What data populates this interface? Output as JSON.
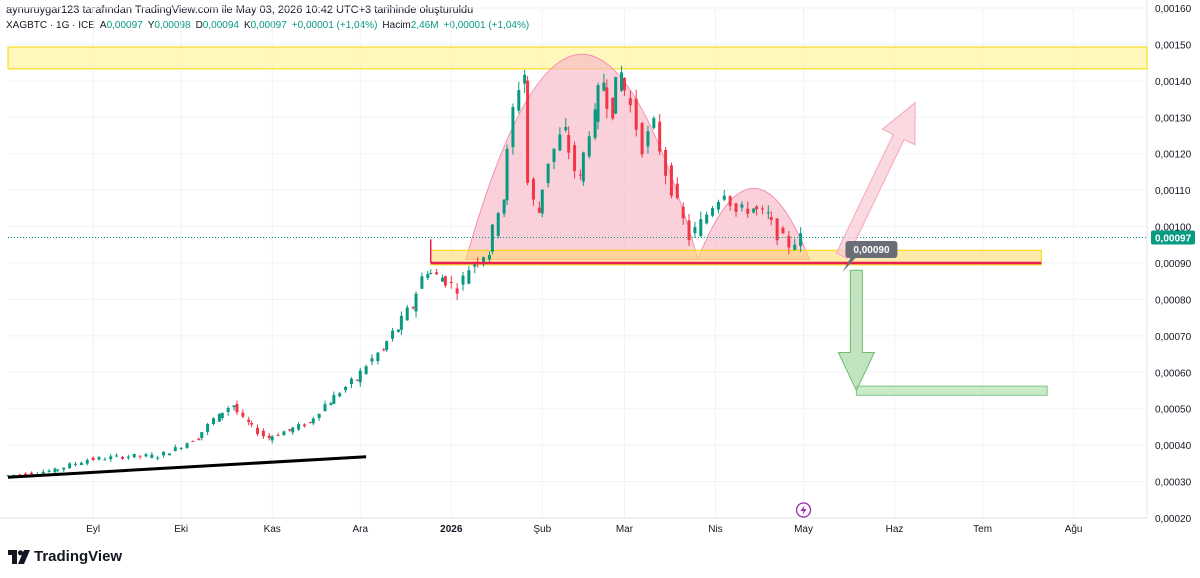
{
  "header": {
    "attribution": "aynuruygar123 tarafından TradingView.com ile May 03, 2026 10:42 UTC+3 tarihinde oluşturuldu"
  },
  "legend": {
    "symbol": "XAGBTC · 1G · ICE",
    "open_label": "A",
    "open": "0,00097",
    "high_label": "Y",
    "high": "0,00098",
    "low_label": "D",
    "low": "0,00094",
    "close_label": "K",
    "close": "0,00097",
    "change": "+0,00001 (+1,04%)",
    "volume_label": "Hacim",
    "volume": "2,46M",
    "volume_change": "+0,00001 (+1,04%)"
  },
  "branding": {
    "name": "TradingView"
  },
  "colors": {
    "up": "#089981",
    "down": "#f23645",
    "support_line": "#e91e4e",
    "zone_yellow": "#fff3a0",
    "dome_fill": "#f7b7c8",
    "target_green": "#b7e4b4",
    "trendline": "#000000",
    "current_price_badge": "#089981",
    "annotation_badge": "#6a6d78"
  },
  "chart_data": {
    "type": "candlestick",
    "symbol": "XAGBTC",
    "interval": "1G",
    "y_scale": "linear",
    "ylim": [
      0.0002,
      0.0016
    ],
    "y_ticks": [
      "0,00160",
      "0,00150",
      "0,00140",
      "0,00130",
      "0,00120",
      "0,00110",
      "0,00100",
      "0,00090",
      "0,00080",
      "0,00070",
      "0,00060",
      "0,00050",
      "0,00040",
      "0,00030",
      "0,00020"
    ],
    "y_tick_values": [
      0.0016,
      0.0015,
      0.0014,
      0.0013,
      0.0012,
      0.0011,
      0.001,
      0.0009,
      0.0008,
      0.0007,
      0.0006,
      0.0005,
      0.0004,
      0.0003,
      0.0002
    ],
    "x_ticks": [
      {
        "label": "Eyl",
        "date": "2025-09-01"
      },
      {
        "label": "Eki",
        "date": "2025-10-01"
      },
      {
        "label": "Kas",
        "date": "2025-11-01"
      },
      {
        "label": "Ara",
        "date": "2025-12-01"
      },
      {
        "label": "2026",
        "date": "2026-01-01",
        "bold": true
      },
      {
        "label": "Şub",
        "date": "2026-02-01"
      },
      {
        "label": "Mar",
        "date": "2026-03-01"
      },
      {
        "label": "Nis",
        "date": "2026-04-01"
      },
      {
        "label": "May",
        "date": "2026-05-01"
      },
      {
        "label": "Haz",
        "date": "2026-06-01"
      },
      {
        "label": "Tem",
        "date": "2026-07-01"
      },
      {
        "label": "Ağu",
        "date": "2026-08-01"
      }
    ],
    "x_range": [
      "2025-08-03",
      "2026-08-26"
    ],
    "price_path": [
      [
        "2025-08-03",
        0.000315
      ],
      [
        "2025-08-20",
        0.00033
      ],
      [
        "2025-09-01",
        0.00036
      ],
      [
        "2025-09-15",
        0.00037
      ],
      [
        "2025-09-25",
        0.00037
      ],
      [
        "2025-10-01",
        0.00039
      ],
      [
        "2025-10-08",
        0.00042
      ],
      [
        "2025-10-15",
        0.00048
      ],
      [
        "2025-10-20",
        0.00051
      ],
      [
        "2025-10-25",
        0.00046
      ],
      [
        "2025-11-01",
        0.00042
      ],
      [
        "2025-11-08",
        0.00044
      ],
      [
        "2025-11-15",
        0.00046
      ],
      [
        "2025-11-22",
        0.00052
      ],
      [
        "2025-12-01",
        0.00058
      ],
      [
        "2025-12-05",
        0.00062
      ],
      [
        "2025-12-10",
        0.00066
      ],
      [
        "2025-12-15",
        0.00072
      ],
      [
        "2025-12-20",
        0.00078
      ],
      [
        "2025-12-25",
        0.00088
      ],
      [
        "2025-12-30",
        0.00086
      ],
      [
        "2026-01-05",
        0.00083
      ],
      [
        "2026-01-10",
        0.0009
      ],
      [
        "2026-01-15",
        0.00093
      ],
      [
        "2026-01-20",
        0.00108
      ],
      [
        "2026-01-24",
        0.00132
      ],
      [
        "2026-01-27",
        0.00142
      ],
      [
        "2026-01-29",
        0.00112
      ],
      [
        "2026-02-01",
        0.00104
      ],
      [
        "2026-02-05",
        0.00118
      ],
      [
        "2026-02-10",
        0.00126
      ],
      [
        "2026-02-15",
        0.00113
      ],
      [
        "2026-02-20",
        0.0013
      ],
      [
        "2026-02-23",
        0.0014
      ],
      [
        "2026-02-26",
        0.00132
      ],
      [
        "2026-03-01",
        0.00142
      ],
      [
        "2026-03-05",
        0.00133
      ],
      [
        "2026-03-09",
        0.00122
      ],
      [
        "2026-03-13",
        0.00128
      ],
      [
        "2026-03-17",
        0.00115
      ],
      [
        "2026-03-21",
        0.00106
      ],
      [
        "2026-03-25",
        0.00097
      ],
      [
        "2026-03-29",
        0.00101
      ],
      [
        "2026-04-02",
        0.00106
      ],
      [
        "2026-04-06",
        0.0011
      ],
      [
        "2026-04-10",
        0.00104
      ],
      [
        "2026-04-15",
        0.00105
      ],
      [
        "2026-04-20",
        0.00103
      ],
      [
        "2026-04-24",
        0.00098
      ],
      [
        "2026-04-28",
        0.00095
      ],
      [
        "2026-05-02",
        0.00097
      ]
    ],
    "current_price": {
      "value": 0.00097,
      "label": "0,00097"
    },
    "drawings": {
      "resistance_zone": {
        "from": "2025-08-03",
        "to": "2026-08-26",
        "y_range": [
          0.001433,
          0.001493
        ]
      },
      "neckline_zone": {
        "from": "2025-12-25",
        "to": "2026-07-21",
        "y_range": [
          0.000895,
          0.000935
        ]
      },
      "neckline": {
        "from": "2025-12-25",
        "to": "2026-07-21",
        "value": 0.0009
      },
      "target_zone": {
        "from": "2026-05-19",
        "to": "2026-07-23",
        "y_range": [
          0.000537,
          0.000562
        ]
      },
      "trendline": {
        "from": [
          "2025-08-03",
          0.000312
        ],
        "to": [
          "2025-12-03",
          0.000368
        ]
      },
      "dome_left": {
        "from": "2026-01-06",
        "to": "2026-03-26",
        "base": 0.00091,
        "peak": 0.001473
      },
      "dome_right": {
        "from": "2026-03-26",
        "to": "2026-05-03",
        "base": 0.00091,
        "peak": 0.001105
      },
      "bullish_arrow": {
        "from": [
          "2026-05-14",
          0.00092
        ],
        "to": [
          "2026-06-08",
          0.00134
        ]
      },
      "bearish_arrow": {
        "from": [
          "2026-05-19",
          0.00088
        ],
        "to": [
          "2026-05-19",
          0.00055
        ]
      },
      "price_annotation": {
        "date": "2026-05-18",
        "value": 0.0009,
        "label": "0,00090"
      }
    }
  }
}
